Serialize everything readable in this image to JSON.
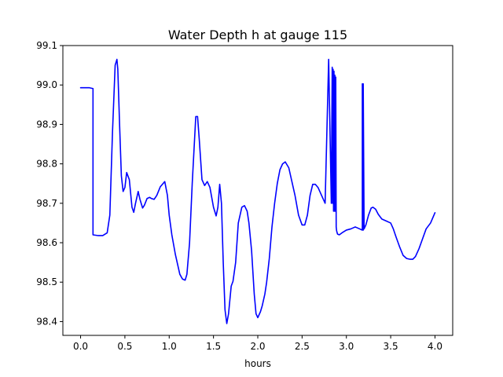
{
  "chart_data": {
    "type": "line",
    "title": "Water Depth h at gauge 115",
    "xlabel": "hours",
    "ylabel": "",
    "xlim": [
      -0.2,
      4.2
    ],
    "ylim": [
      98.365,
      99.1
    ],
    "grid": false,
    "legend": "none",
    "x_ticks": [
      0.0,
      0.5,
      1.0,
      1.5,
      2.0,
      2.5,
      3.0,
      3.5,
      4.0
    ],
    "x_tick_labels": [
      "0.0",
      "0.5",
      "1.0",
      "1.5",
      "2.0",
      "2.5",
      "3.0",
      "3.5",
      "4.0"
    ],
    "y_ticks": [
      98.4,
      98.5,
      98.6,
      98.7,
      98.8,
      98.9,
      99.0,
      99.1
    ],
    "y_tick_labels": [
      "98.4",
      "98.5",
      "98.6",
      "98.7",
      "98.8",
      "98.9",
      "99.0",
      "99.1"
    ],
    "series": [
      {
        "color": "#0000ff",
        "x": [
          0.0,
          0.1,
          0.14,
          0.14,
          0.2,
          0.25,
          0.3,
          0.33,
          0.36,
          0.39,
          0.41,
          0.42,
          0.44,
          0.46,
          0.48,
          0.5,
          0.52,
          0.55,
          0.58,
          0.6,
          0.62,
          0.65,
          0.67,
          0.7,
          0.72,
          0.75,
          0.78,
          0.8,
          0.83,
          0.86,
          0.9,
          0.95,
          0.98,
          1.0,
          1.03,
          1.07,
          1.12,
          1.15,
          1.18,
          1.2,
          1.23,
          1.26,
          1.3,
          1.32,
          1.34,
          1.37,
          1.4,
          1.43,
          1.46,
          1.5,
          1.53,
          1.55,
          1.57,
          1.59,
          1.61,
          1.63,
          1.65,
          1.67,
          1.7,
          1.72,
          1.75,
          1.78,
          1.82,
          1.85,
          1.88,
          1.9,
          1.93,
          1.96,
          1.98,
          2.0,
          2.03,
          2.05,
          2.08,
          2.1,
          2.13,
          2.16,
          2.19,
          2.22,
          2.25,
          2.28,
          2.31,
          2.35,
          2.38,
          2.42,
          2.46,
          2.5,
          2.53,
          2.56,
          2.59,
          2.62,
          2.65,
          2.68,
          2.72,
          2.76,
          2.8,
          2.83,
          2.84,
          2.845,
          2.85,
          2.855,
          2.86,
          2.865,
          2.87,
          2.875,
          2.88,
          2.885,
          2.89,
          2.9,
          2.92,
          2.95,
          3.0,
          3.05,
          3.1,
          3.15,
          3.18,
          3.18,
          3.19,
          3.19,
          3.2,
          3.22,
          3.25,
          3.28,
          3.3,
          3.33,
          3.36,
          3.4,
          3.45,
          3.5,
          3.53,
          3.56,
          3.6,
          3.64,
          3.68,
          3.72,
          3.75,
          3.78,
          3.82,
          3.86,
          3.9,
          3.95,
          4.0
        ],
        "y": [
          98.993,
          98.993,
          98.991,
          98.62,
          98.618,
          98.618,
          98.625,
          98.67,
          98.88,
          99.05,
          99.065,
          99.04,
          98.9,
          98.77,
          98.73,
          98.74,
          98.778,
          98.76,
          98.69,
          98.677,
          98.7,
          98.73,
          98.71,
          98.688,
          98.695,
          98.712,
          98.715,
          98.712,
          98.71,
          98.72,
          98.742,
          98.755,
          98.72,
          98.67,
          98.62,
          98.57,
          98.52,
          98.508,
          98.505,
          98.52,
          98.6,
          98.75,
          98.92,
          98.92,
          98.86,
          98.76,
          98.745,
          98.755,
          98.74,
          98.69,
          98.668,
          98.69,
          98.748,
          98.7,
          98.55,
          98.43,
          98.395,
          98.42,
          98.49,
          98.502,
          98.55,
          98.65,
          98.69,
          98.694,
          98.68,
          98.65,
          98.58,
          98.47,
          98.42,
          98.41,
          98.425,
          98.44,
          98.47,
          98.5,
          98.56,
          98.64,
          98.7,
          98.75,
          98.785,
          98.8,
          98.805,
          98.79,
          98.76,
          98.72,
          98.67,
          98.645,
          98.645,
          98.67,
          98.72,
          98.748,
          98.748,
          98.74,
          98.72,
          98.7,
          99.065,
          98.7,
          99.045,
          98.7,
          99.04,
          98.68,
          99.035,
          98.68,
          99.025,
          98.68,
          99.02,
          98.64,
          98.63,
          98.622,
          98.62,
          98.625,
          98.632,
          98.635,
          98.64,
          98.635,
          98.632,
          99.003,
          98.632,
          99.003,
          98.635,
          98.645,
          98.67,
          98.688,
          98.69,
          98.685,
          98.672,
          98.66,
          98.655,
          98.65,
          98.635,
          98.615,
          98.59,
          98.568,
          98.56,
          98.558,
          98.558,
          98.565,
          98.585,
          98.61,
          98.635,
          98.65,
          98.676
        ]
      }
    ]
  }
}
